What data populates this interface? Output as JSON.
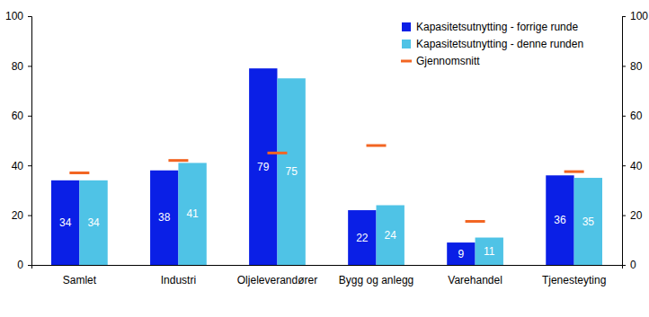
{
  "chart_data": {
    "type": "bar",
    "categories": [
      "Samlet",
      "Industri",
      "Oljeleverandører",
      "Bygg og anlegg",
      "Varehandel",
      "Tjenesteyting"
    ],
    "series": [
      {
        "name": "Kapasitetsutnytting - forrige runde",
        "color": "#0a1fe6",
        "type": "bar",
        "values": [
          34,
          38,
          79,
          22,
          9,
          36
        ]
      },
      {
        "name": "Kapasitetsutnytting - denne runden",
        "color": "#4fc3e6",
        "type": "bar",
        "values": [
          34,
          41,
          75,
          24,
          11,
          35
        ]
      },
      {
        "name": "Gjennomsnitt",
        "color": "#f26522",
        "type": "scatter",
        "marker": "dash",
        "values": [
          37,
          42,
          45,
          48,
          17.5,
          37.5
        ]
      }
    ],
    "ylim": [
      0,
      100
    ],
    "yticks": [
      0,
      20,
      40,
      60,
      80,
      100
    ],
    "y2lim": [
      0,
      100
    ],
    "y2ticks": [
      0,
      20,
      40,
      60,
      80,
      100
    ],
    "grid": false,
    "legend": "upper right",
    "data_labels": true
  }
}
